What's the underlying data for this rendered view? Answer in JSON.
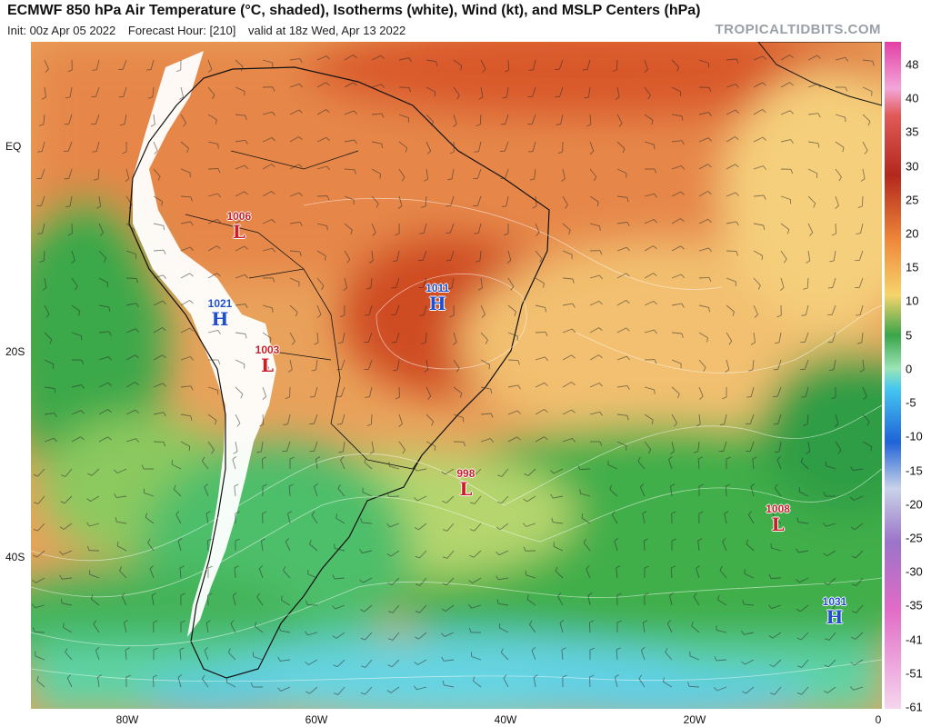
{
  "header": {
    "title": "ECMWF 850 hPa Air Temperature (°C, shaded), Isotherms (white), Wind (kt), and MSLP Centers (hPa)",
    "init": "Init: 00z Apr 05 2022",
    "forecast_hour": "Forecast Hour: [210]",
    "valid": "valid at 18z Wed, Apr 13 2022",
    "brand": "TROPICALTIDBITS.COM"
  },
  "axes": {
    "lat_labels": [
      "EQ",
      "20S",
      "40S"
    ],
    "lon_labels": [
      "80W",
      "60W",
      "40W",
      "20W",
      "0"
    ]
  },
  "colorbar": {
    "ticks": [
      "48",
      "40",
      "35",
      "30",
      "25",
      "20",
      "15",
      "10",
      "5",
      "0",
      "-5",
      "-10",
      "-15",
      "-20",
      "-25",
      "-30",
      "-35",
      "-41",
      "-51",
      "-61"
    ]
  },
  "pressure_centers": [
    {
      "type": "L",
      "value": "1006",
      "lon": -68,
      "lat": -8
    },
    {
      "type": "H",
      "value": "1021",
      "lon": -70,
      "lat": -16.5
    },
    {
      "type": "L",
      "value": "1003",
      "lon": -65,
      "lat": -21
    },
    {
      "type": "H",
      "value": "1011",
      "lon": -47,
      "lat": -15
    },
    {
      "type": "L",
      "value": "998",
      "lon": -44,
      "lat": -33
    },
    {
      "type": "L",
      "value": "1008",
      "lon": -11,
      "lat": -36.5
    },
    {
      "type": "H",
      "value": "1031",
      "lon": -5,
      "lat": -45.5
    }
  ],
  "colors": {
    "hot": "#c9431f",
    "warm": "#e98f4a",
    "mild": "#f4c270",
    "cool": "#c5d97a",
    "green": "#3fae4a",
    "cold_green": "#5bd6a0",
    "cyan": "#58c8e8",
    "terrain": "#ffffff"
  }
}
